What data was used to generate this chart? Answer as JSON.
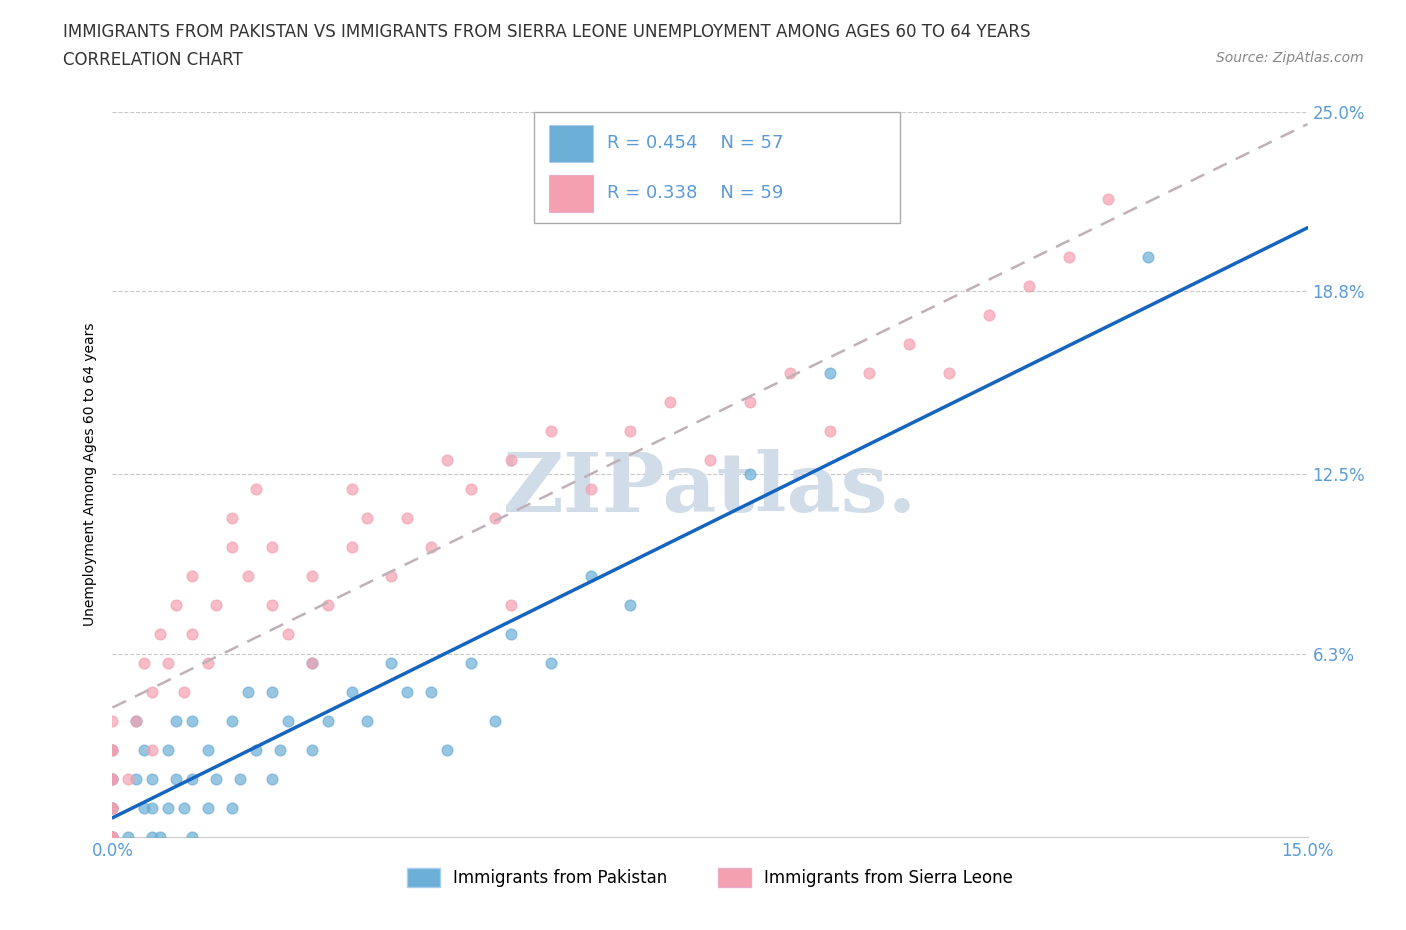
{
  "title_line1": "IMMIGRANTS FROM PAKISTAN VS IMMIGRANTS FROM SIERRA LEONE UNEMPLOYMENT AMONG AGES 60 TO 64 YEARS",
  "title_line2": "CORRELATION CHART",
  "source_text": "Source: ZipAtlas.com",
  "ylabel": "Unemployment Among Ages 60 to 64 years",
  "xlim": [
    0.0,
    0.15
  ],
  "ylim": [
    0.0,
    0.25
  ],
  "ytick_values": [
    0.0,
    0.063,
    0.125,
    0.188,
    0.25
  ],
  "ytick_labels": [
    "",
    "6.3%",
    "12.5%",
    "18.8%",
    "25.0%"
  ],
  "pakistan_color": "#6baed6",
  "sierraleone_color": "#f4a0b0",
  "pakistan_line_color": "#1464c0",
  "sierraleone_line_color": "#e05080",
  "R_pakistan": 0.454,
  "N_pakistan": 57,
  "R_sierraleone": 0.338,
  "N_sierraleone": 59,
  "legend_label_pakistan": "Immigrants from Pakistan",
  "legend_label_sierraleone": "Immigrants from Sierra Leone",
  "background_color": "#ffffff",
  "grid_color": "#c8c8c8",
  "title_fontsize": 12,
  "tick_label_color": "#5b9bd5",
  "watermark_text": "ZIPatlas.",
  "watermark_color": "#d0dce8"
}
